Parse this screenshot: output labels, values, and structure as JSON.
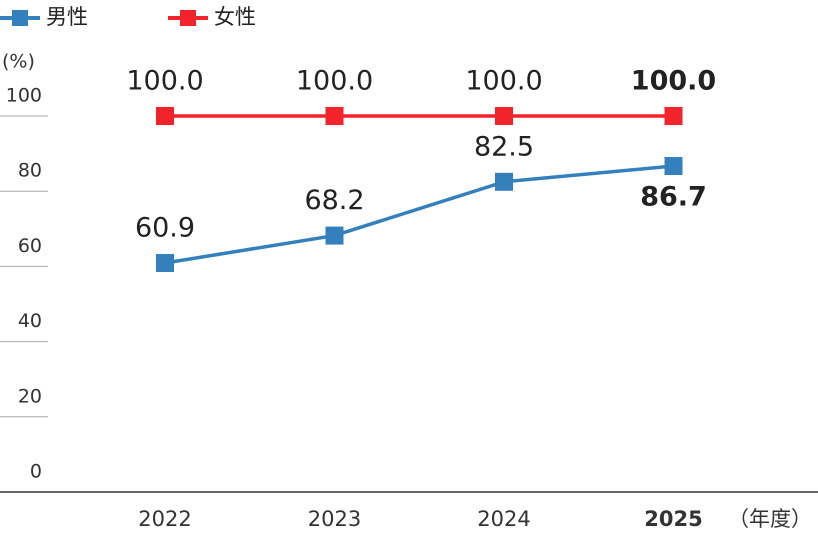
{
  "chart_data": {
    "type": "line",
    "y_axis_label": "(%)",
    "x_axis_label": "（年度）",
    "categories": [
      "2022",
      "2023",
      "2024",
      "2025"
    ],
    "series": [
      {
        "name": "男性",
        "color": "#3480bd",
        "values": [
          60.9,
          68.2,
          82.5,
          86.7
        ]
      },
      {
        "name": "女性",
        "color": "#f2232a",
        "values": [
          100,
          100,
          100,
          100
        ],
        "value_labels": [
          "100.0",
          "100.0",
          "100.0",
          "100.0"
        ]
      }
    ],
    "ylim": [
      0,
      100
    ],
    "yticks": [
      0,
      20,
      40,
      60,
      80,
      100
    ],
    "grid": true
  }
}
